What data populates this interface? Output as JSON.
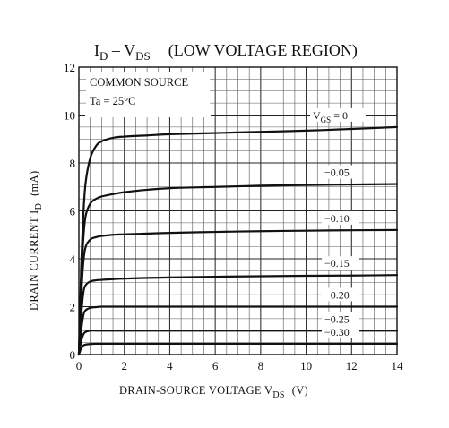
{
  "chart_data": {
    "type": "line",
    "title_main": "I",
    "title_sub1": "D",
    "title_dash": " – V",
    "title_sub2": "DS",
    "title_rest": "(LOW VOLTAGE REGION)",
    "conditions": {
      "line1": "COMMON SOURCE",
      "line2": "Ta = 25°C"
    },
    "xlabel": {
      "text": "DRAIN-SOURCE VOLTAGE  V",
      "sub": "DS",
      "unit": "(V)"
    },
    "ylabel": {
      "text": "DRAIN CURRENT  I",
      "sub": "D",
      "unit": "(mA)"
    },
    "xlim": [
      0,
      14
    ],
    "ylim": [
      0,
      12
    ],
    "x_ticks": [
      0,
      2,
      4,
      6,
      8,
      10,
      12,
      14
    ],
    "y_ticks": [
      0,
      2,
      4,
      6,
      8,
      10,
      12
    ],
    "grid": true,
    "series": [
      {
        "name": "V",
        "name_sub": "GS",
        "name_suffix": " = 0",
        "x": [
          0,
          0.1,
          0.2,
          0.3,
          0.5,
          0.75,
          1,
          1.5,
          2,
          3,
          4,
          6,
          8,
          10,
          12,
          14
        ],
        "values": [
          0,
          3.6,
          5.9,
          7.2,
          8.2,
          8.7,
          8.9,
          9.05,
          9.1,
          9.15,
          9.2,
          9.25,
          9.3,
          9.35,
          9.42,
          9.5
        ]
      },
      {
        "name": "−0.05",
        "x": [
          0,
          0.1,
          0.2,
          0.3,
          0.5,
          0.75,
          1,
          1.5,
          2,
          3,
          4,
          6,
          8,
          10,
          12,
          14
        ],
        "values": [
          0,
          3.0,
          4.9,
          5.8,
          6.3,
          6.5,
          6.6,
          6.7,
          6.78,
          6.88,
          6.95,
          7.0,
          7.05,
          7.08,
          7.1,
          7.12
        ]
      },
      {
        "name": "−0.10",
        "x": [
          0,
          0.1,
          0.2,
          0.3,
          0.5,
          0.75,
          1,
          1.5,
          2,
          3,
          4,
          6,
          8,
          10,
          12,
          14
        ],
        "values": [
          0,
          2.4,
          3.9,
          4.5,
          4.8,
          4.9,
          4.95,
          5.0,
          5.02,
          5.05,
          5.08,
          5.12,
          5.15,
          5.17,
          5.19,
          5.2
        ]
      },
      {
        "name": "−0.15",
        "x": [
          0,
          0.1,
          0.2,
          0.3,
          0.5,
          0.75,
          1,
          1.5,
          2,
          3,
          4,
          6,
          8,
          10,
          12,
          14
        ],
        "values": [
          0,
          1.6,
          2.6,
          2.9,
          3.05,
          3.1,
          3.12,
          3.15,
          3.17,
          3.2,
          3.22,
          3.25,
          3.27,
          3.29,
          3.3,
          3.32
        ]
      },
      {
        "name": "−0.20",
        "x": [
          0,
          0.1,
          0.2,
          0.3,
          0.5,
          0.75,
          1,
          1.5,
          2,
          3,
          4,
          6,
          8,
          10,
          12,
          14
        ],
        "values": [
          0,
          1.0,
          1.65,
          1.85,
          1.95,
          1.98,
          2.0,
          2.0,
          2.0,
          2.0,
          2.0,
          2.0,
          2.0,
          2.0,
          2.0,
          2.0
        ]
      },
      {
        "name": "−0.25",
        "x": [
          0,
          0.1,
          0.2,
          0.3,
          0.5,
          0.75,
          1,
          1.5,
          2,
          3,
          4,
          6,
          8,
          10,
          12,
          14
        ],
        "values": [
          0,
          0.55,
          0.85,
          0.95,
          1.0,
          1.0,
          1.0,
          1.0,
          1.0,
          1.0,
          1.0,
          1.0,
          1.0,
          1.0,
          1.0,
          1.0
        ]
      },
      {
        "name": "−0.30",
        "x": [
          0,
          0.1,
          0.2,
          0.3,
          0.5,
          0.75,
          1,
          1.5,
          2,
          3,
          4,
          6,
          8,
          10,
          12,
          14
        ],
        "values": [
          0,
          0.25,
          0.38,
          0.42,
          0.44,
          0.45,
          0.45,
          0.45,
          0.45,
          0.45,
          0.45,
          0.45,
          0.45,
          0.45,
          0.45,
          0.45
        ]
      }
    ]
  }
}
